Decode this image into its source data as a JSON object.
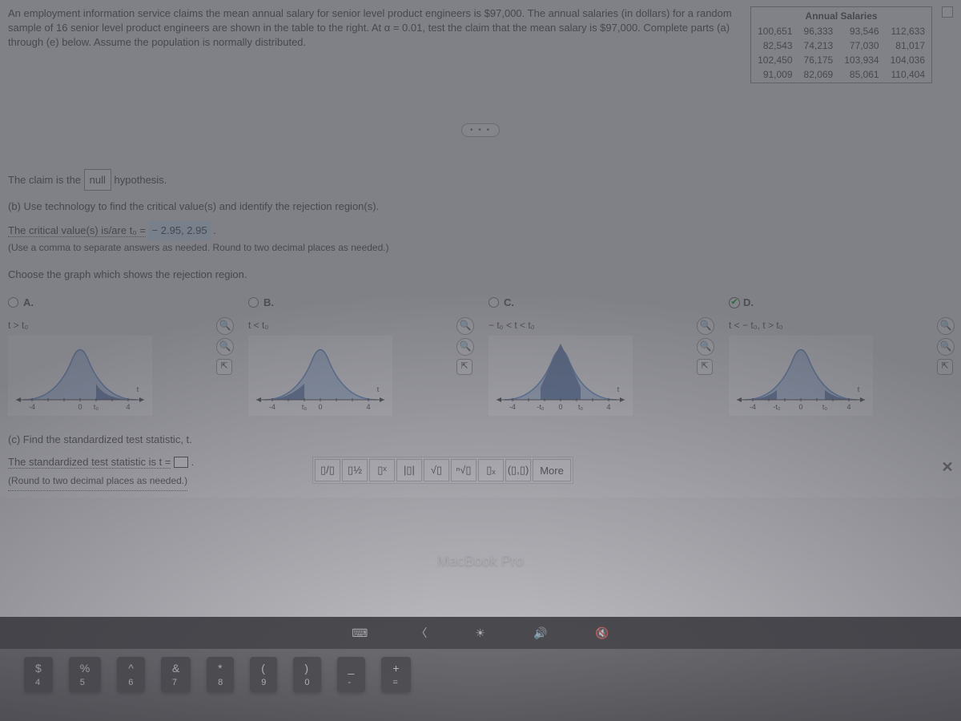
{
  "problem": {
    "text": "An employment information service claims the mean annual salary for senior level product engineers is $97,000. The annual salaries (in dollars) for a random sample of 16 senior level product engineers are shown in the table to the right. At α = 0.01, test the claim that the mean salary is $97,000. Complete parts (a) through (e) below. Assume the population is normally distributed."
  },
  "salary_table": {
    "title": "Annual Salaries",
    "rows": [
      [
        "100,651",
        "96,333",
        "93,546",
        "112,633"
      ],
      [
        "82,543",
        "74,213",
        "77,030",
        "81,017"
      ],
      [
        "102,450",
        "76,175",
        "103,934",
        "104,036"
      ],
      [
        "91,009",
        "82,069",
        "85,061",
        "110,404"
      ]
    ]
  },
  "claim_line": {
    "prefix": "The claim is the",
    "value": "null",
    "suffix": "hypothesis."
  },
  "part_b": {
    "instruction": "(b) Use technology to find the critical value(s) and identify the rejection region(s).",
    "crit_prefix": "The critical value(s) is/are t₀ =",
    "crit_value": "− 2.95, 2.95",
    "crit_suffix": ".",
    "hint": "(Use a comma to separate answers as needed. Round to two decimal places as needed.)",
    "choose": "Choose the graph which shows the rejection region."
  },
  "choices": {
    "a": {
      "label": "A.",
      "region": "t > t₀",
      "ticks": [
        "-4",
        "0",
        "t₀",
        "4"
      ]
    },
    "b": {
      "label": "B.",
      "region": "t < t₀",
      "ticks": [
        "-4",
        "t₀",
        "0",
        "4"
      ]
    },
    "c": {
      "label": "C.",
      "region": "− t₀ < t < t₀",
      "ticks": [
        "-4",
        "-t₀",
        "0",
        "t₀",
        "4"
      ]
    },
    "d": {
      "label": "D.",
      "region": "t < − t₀, t > t₀",
      "ticks": [
        "-4",
        "-t₀",
        "0",
        "t₀",
        "4"
      ],
      "selected": true
    }
  },
  "part_c": {
    "instruction": "(c) Find the standardized test statistic, t.",
    "stat_prefix": "The standardized test statistic is t =",
    "stat_suffix": ".",
    "hint": "(Round to two decimal places as needed.)"
  },
  "toolbar": {
    "buttons": [
      "frac",
      "mixed",
      "exp",
      "abs",
      "sqrt",
      "nroot",
      "sub",
      "interval"
    ],
    "more": "More"
  },
  "graph_style": {
    "width": 180,
    "height": 110,
    "curve_color": "#5588cc",
    "fill_color": "#b8d0ee",
    "shade_color": "#5577aa",
    "axis_color": "#333333",
    "bg": "#ffffff"
  },
  "device": {
    "label": "MacBook Pro"
  },
  "keyboard": {
    "keys": [
      "$",
      "%",
      "^",
      "&",
      "*",
      "(",
      ")",
      "_",
      "+"
    ],
    "nums": [
      "4",
      "5",
      "6",
      "7",
      "8",
      "9",
      "0",
      "-",
      "="
    ]
  }
}
